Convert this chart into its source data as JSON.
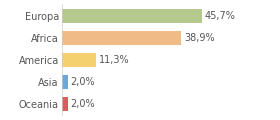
{
  "categories": [
    "Europa",
    "Africa",
    "America",
    "Asia",
    "Oceania"
  ],
  "values": [
    45.7,
    38.9,
    11.3,
    2.0,
    2.0
  ],
  "labels": [
    "45,7%",
    "38,9%",
    "11,3%",
    "2,0%",
    "2,0%"
  ],
  "bar_colors": [
    "#b5c98e",
    "#f0bb86",
    "#f5d06e",
    "#6fa8d8",
    "#d95f5f"
  ],
  "background_color": "#ffffff",
  "xlim": [
    0,
    60
  ],
  "bar_height": 0.65,
  "label_fontsize": 7.0,
  "tick_fontsize": 7.0,
  "figwidth": 2.8,
  "figheight": 1.2,
  "dpi": 100
}
